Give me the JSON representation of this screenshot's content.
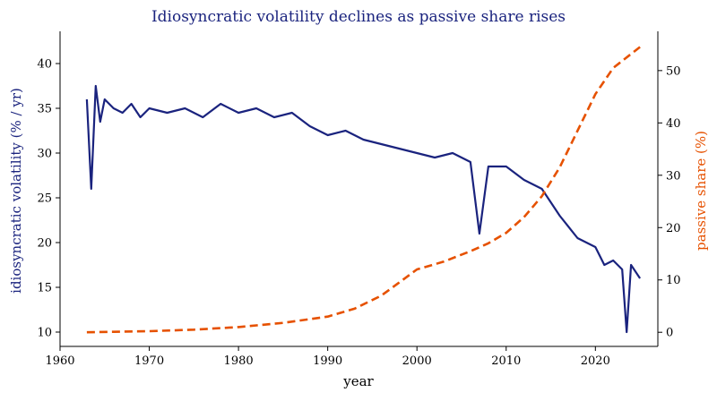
{
  "chart_data": {
    "type": "line",
    "title": "Idiosyncratic volatility declines as passive share rises",
    "xlabel": "year",
    "ylabel_left": "idiosyncratic volatility (% / yr)",
    "ylabel_right": "passive share (%)",
    "xlim": [
      1960,
      2027
    ],
    "ylim_left": [
      8.4,
      43.6
    ],
    "ylim_right": [
      -2.7,
      57.5
    ],
    "xticks": [
      1960,
      1970,
      1980,
      1990,
      2000,
      2010,
      2020
    ],
    "yticks_left": [
      10,
      15,
      20,
      25,
      30,
      35,
      40
    ],
    "yticks_right": [
      0,
      10,
      20,
      30,
      40,
      50
    ],
    "grid": false,
    "colors": {
      "volatility": "#1a237e",
      "passive": "#e65100",
      "title": "#1a237e",
      "ylabel_left": "#1a237e",
      "ylabel_right": "#e65100"
    },
    "series": [
      {
        "axis": "left",
        "style": "solid",
        "x": [
          1963.0,
          1963.5,
          1964.0,
          1964.5,
          1965.0,
          1966.0,
          1967.0,
          1968.0,
          1969.0,
          1970.0,
          1972.0,
          1974.0,
          1976.0,
          1978.0,
          1980.0,
          1982.0,
          1984.0,
          1986.0,
          1988.0,
          1990.0,
          1992.0,
          1994.0,
          1996.0,
          1998.0,
          2000.0,
          2002.0,
          2004.0,
          2006.0,
          2007.0,
          2008.0,
          2010.0,
          2012.0,
          2014.0,
          2016.0,
          2018.0,
          2020.0,
          2021.0,
          2022.0,
          2023.0,
          2023.5,
          2024.0,
          2025.0
        ],
        "values": [
          36.0,
          26.0,
          37.5,
          33.5,
          36.0,
          35.0,
          34.5,
          35.5,
          34.0,
          35.0,
          34.5,
          35.0,
          34.0,
          35.5,
          34.5,
          35.0,
          34.0,
          34.5,
          33.0,
          32.0,
          32.5,
          31.5,
          31.0,
          30.5,
          30.0,
          29.5,
          30.0,
          29.0,
          21.0,
          28.5,
          28.5,
          27.0,
          26.0,
          23.0,
          20.5,
          19.5,
          17.5,
          18.0,
          17.0,
          10.0,
          17.5,
          16.0
        ]
      },
      {
        "axis": "right",
        "style": "dashed",
        "x": [
          1963,
          1970,
          1975,
          1980,
          1985,
          1990,
          1993,
          1996,
          1998,
          2000,
          2003,
          2006,
          2008,
          2010,
          2012,
          2014,
          2016,
          2018,
          2020,
          2022,
          2025
        ],
        "values": [
          0.0,
          0.2,
          0.5,
          1.0,
          1.8,
          3.0,
          4.5,
          7.0,
          9.5,
          12.0,
          13.5,
          15.5,
          17.0,
          19.0,
          22.0,
          26.0,
          31.5,
          38.5,
          45.5,
          50.5,
          54.5
        ]
      }
    ]
  }
}
